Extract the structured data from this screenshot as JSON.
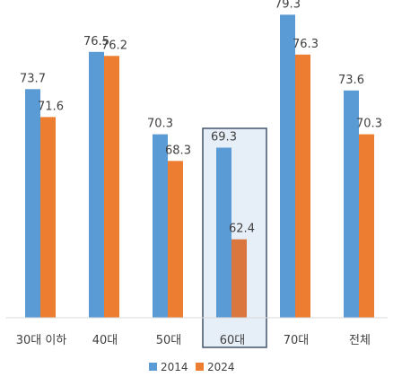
{
  "chart_data": {
    "type": "bar",
    "title": "",
    "xlabel": "",
    "ylabel": "",
    "categories": [
      "30대 이하",
      "40대",
      "50대",
      "60대",
      "70대",
      "전체"
    ],
    "series": [
      {
        "name": "2014",
        "values": [
          73.7,
          76.5,
          70.3,
          69.3,
          79.3,
          73.6
        ],
        "color": "#5B9BD5"
      },
      {
        "name": "2024",
        "values": [
          71.6,
          76.2,
          68.3,
          62.4,
          76.3,
          70.3
        ],
        "color": "#ED7D31"
      }
    ],
    "value_labels": {
      "2014": [
        "73.7",
        "76.5",
        "70.3",
        "69.3",
        "79.3",
        "73.6"
      ],
      "2024": [
        "71.6",
        "76.2",
        "68.3",
        "62.4",
        "76.3",
        "70.3"
      ]
    },
    "ylim": [
      56.5,
      80
    ],
    "legend_position": "bottom-center",
    "grid": false,
    "highlighted_category": "60대",
    "highlight_colors": {
      "fill": "#E6EEF8",
      "border": "#44546A",
      "bar_2024": "#D9773F"
    }
  }
}
